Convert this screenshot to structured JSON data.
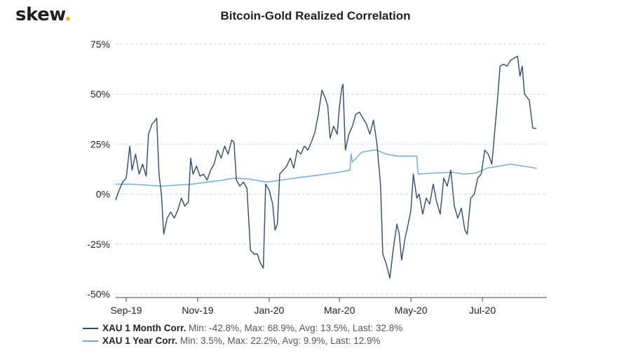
{
  "brand": {
    "name": "skew",
    "dot": "."
  },
  "chart_data": {
    "type": "line",
    "title": "Bitcoin-Gold Realized Correlation",
    "xlabel": "",
    "ylabel": "",
    "ylim": [
      -50,
      75
    ],
    "y_ticks": [
      "75%",
      "50%",
      "25%",
      "0%",
      "-25%",
      "-50%"
    ],
    "y_tick_values": [
      75,
      50,
      25,
      0,
      -25,
      -50
    ],
    "x_ticks": [
      "Sep-19",
      "Nov-19",
      "Jan-20",
      "Mar-20",
      "May-20",
      "Jul-20"
    ],
    "x_tick_dates": [
      "2019-09-01",
      "2019-11-01",
      "2020-01-01",
      "2020-03-01",
      "2020-05-01",
      "2020-07-01"
    ],
    "x_range": [
      "2019-08-23",
      "2020-08-25"
    ],
    "grid": "horizontal dashed",
    "legend_position": "bottom-left",
    "series": [
      {
        "name": "XAU 1 Month Corr.",
        "color": "#2e4a72",
        "stats": "Min: -42.8%, Max: 68.9%, Avg: 13.5%, Last: 32.8%",
        "points": [
          [
            "2019-08-23",
            -3
          ],
          [
            "2019-08-26",
            2
          ],
          [
            "2019-08-29",
            6
          ],
          [
            "2019-09-01",
            8
          ],
          [
            "2019-09-04",
            24
          ],
          [
            "2019-09-06",
            12
          ],
          [
            "2019-09-09",
            20
          ],
          [
            "2019-09-12",
            10
          ],
          [
            "2019-09-15",
            15
          ],
          [
            "2019-09-18",
            9
          ],
          [
            "2019-09-20",
            30
          ],
          [
            "2019-09-23",
            35
          ],
          [
            "2019-09-26",
            37
          ],
          [
            "2019-09-27",
            38
          ],
          [
            "2019-09-29",
            10
          ],
          [
            "2019-10-01",
            0
          ],
          [
            "2019-10-03",
            -20
          ],
          [
            "2019-10-06",
            -12
          ],
          [
            "2019-10-09",
            -9
          ],
          [
            "2019-10-12",
            -12
          ],
          [
            "2019-10-15",
            -8
          ],
          [
            "2019-10-18",
            -2
          ],
          [
            "2019-10-21",
            -6
          ],
          [
            "2019-10-24",
            -4
          ],
          [
            "2019-10-26",
            18
          ],
          [
            "2019-10-28",
            10
          ],
          [
            "2019-10-31",
            14
          ],
          [
            "2019-11-03",
            9
          ],
          [
            "2019-11-06",
            10
          ],
          [
            "2019-11-09",
            7
          ],
          [
            "2019-11-12",
            12
          ],
          [
            "2019-11-15",
            15
          ],
          [
            "2019-11-18",
            22
          ],
          [
            "2019-11-21",
            18
          ],
          [
            "2019-11-24",
            24
          ],
          [
            "2019-11-27",
            20
          ],
          [
            "2019-11-30",
            27
          ],
          [
            "2019-12-02",
            26
          ],
          [
            "2019-12-04",
            7
          ],
          [
            "2019-12-07",
            4
          ],
          [
            "2019-12-10",
            6
          ],
          [
            "2019-12-13",
            3
          ],
          [
            "2019-12-16",
            -28
          ],
          [
            "2019-12-19",
            -30
          ],
          [
            "2019-12-22",
            -30
          ],
          [
            "2019-12-24",
            -34
          ],
          [
            "2019-12-27",
            -37
          ],
          [
            "2019-12-29",
            5
          ],
          [
            "2020-01-01",
            2
          ],
          [
            "2020-01-04",
            -5
          ],
          [
            "2020-01-06",
            -18
          ],
          [
            "2020-01-08",
            -15
          ],
          [
            "2020-01-10",
            10
          ],
          [
            "2020-01-13",
            12
          ],
          [
            "2020-01-16",
            14
          ],
          [
            "2020-01-19",
            18
          ],
          [
            "2020-01-22",
            13
          ],
          [
            "2020-01-25",
            22
          ],
          [
            "2020-01-28",
            20
          ],
          [
            "2020-01-31",
            24
          ],
          [
            "2020-02-03",
            22
          ],
          [
            "2020-02-06",
            26
          ],
          [
            "2020-02-09",
            31
          ],
          [
            "2020-02-12",
            40
          ],
          [
            "2020-02-15",
            52
          ],
          [
            "2020-02-18",
            48
          ],
          [
            "2020-02-20",
            44
          ],
          [
            "2020-02-22",
            28
          ],
          [
            "2020-02-25",
            34
          ],
          [
            "2020-02-28",
            30
          ],
          [
            "2020-03-01",
            44
          ],
          [
            "2020-03-03",
            53
          ],
          [
            "2020-03-04",
            55
          ],
          [
            "2020-03-06",
            22
          ],
          [
            "2020-03-09",
            30
          ],
          [
            "2020-03-12",
            34
          ],
          [
            "2020-03-15",
            40
          ],
          [
            "2020-03-18",
            41
          ],
          [
            "2020-03-21",
            38
          ],
          [
            "2020-03-24",
            35
          ],
          [
            "2020-03-27",
            30
          ],
          [
            "2020-03-30",
            37
          ],
          [
            "2020-04-02",
            25
          ],
          [
            "2020-04-05",
            5
          ],
          [
            "2020-04-07",
            -30
          ],
          [
            "2020-04-10",
            -35
          ],
          [
            "2020-04-13",
            -42
          ],
          [
            "2020-04-16",
            -27
          ],
          [
            "2020-04-19",
            -15
          ],
          [
            "2020-04-21",
            -20
          ],
          [
            "2020-04-23",
            -33
          ],
          [
            "2020-04-26",
            -22
          ],
          [
            "2020-04-29",
            -14
          ],
          [
            "2020-05-01",
            -8
          ],
          [
            "2020-05-03",
            10
          ],
          [
            "2020-05-06",
            -2
          ],
          [
            "2020-05-08",
            0
          ],
          [
            "2020-05-11",
            -10
          ],
          [
            "2020-05-14",
            -2
          ],
          [
            "2020-05-17",
            -5
          ],
          [
            "2020-05-20",
            5
          ],
          [
            "2020-05-23",
            -4
          ],
          [
            "2020-05-26",
            -10
          ],
          [
            "2020-05-29",
            8
          ],
          [
            "2020-06-01",
            4
          ],
          [
            "2020-06-04",
            12
          ],
          [
            "2020-06-07",
            -6
          ],
          [
            "2020-06-10",
            -12
          ],
          [
            "2020-06-13",
            -7
          ],
          [
            "2020-06-16",
            -18
          ],
          [
            "2020-06-18",
            -20
          ],
          [
            "2020-06-21",
            -2
          ],
          [
            "2020-06-24",
            0
          ],
          [
            "2020-06-27",
            8
          ],
          [
            "2020-06-30",
            10
          ],
          [
            "2020-07-03",
            22
          ],
          [
            "2020-07-06",
            20
          ],
          [
            "2020-07-09",
            15
          ],
          [
            "2020-07-11",
            28
          ],
          [
            "2020-07-14",
            48
          ],
          [
            "2020-07-16",
            64
          ],
          [
            "2020-07-19",
            65
          ],
          [
            "2020-07-22",
            64
          ],
          [
            "2020-07-25",
            67
          ],
          [
            "2020-07-28",
            68
          ],
          [
            "2020-07-31",
            69
          ],
          [
            "2020-08-02",
            59
          ],
          [
            "2020-08-04",
            64
          ],
          [
            "2020-08-06",
            50
          ],
          [
            "2020-08-10",
            47
          ],
          [
            "2020-08-13",
            33
          ],
          [
            "2020-08-16",
            32.8
          ]
        ]
      },
      {
        "name": "XAU 1 Year Corr.",
        "color": "#6aa6e0",
        "stats": "Min: 3.5%, Max: 22.2%, Avg: 9.9%, Last: 12.9%",
        "points": [
          [
            "2019-08-23",
            5
          ],
          [
            "2019-09-05",
            5
          ],
          [
            "2019-09-18",
            4.5
          ],
          [
            "2019-10-01",
            4
          ],
          [
            "2019-10-14",
            4.5
          ],
          [
            "2019-10-27",
            5
          ],
          [
            "2019-11-09",
            6
          ],
          [
            "2019-11-22",
            7
          ],
          [
            "2019-12-02",
            8
          ],
          [
            "2019-12-15",
            7.5
          ],
          [
            "2019-12-30",
            6
          ],
          [
            "2020-01-10",
            7
          ],
          [
            "2020-01-23",
            8
          ],
          [
            "2020-02-05",
            9
          ],
          [
            "2020-02-18",
            10
          ],
          [
            "2020-03-01",
            11
          ],
          [
            "2020-03-10",
            12
          ],
          [
            "2020-03-11",
            20
          ],
          [
            "2020-03-12",
            16
          ],
          [
            "2020-03-20",
            21
          ],
          [
            "2020-04-01",
            22.2
          ],
          [
            "2020-04-10",
            20
          ],
          [
            "2020-04-20",
            19
          ],
          [
            "2020-05-01",
            19
          ],
          [
            "2020-05-06",
            19
          ],
          [
            "2020-05-07",
            10
          ],
          [
            "2020-05-20",
            10.5
          ],
          [
            "2020-06-05",
            11
          ],
          [
            "2020-06-15",
            10
          ],
          [
            "2020-06-25",
            10.5
          ],
          [
            "2020-07-05",
            13
          ],
          [
            "2020-07-15",
            14
          ],
          [
            "2020-07-25",
            15
          ],
          [
            "2020-08-05",
            14
          ],
          [
            "2020-08-16",
            12.9
          ]
        ]
      }
    ]
  }
}
